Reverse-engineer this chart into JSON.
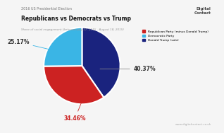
{
  "title_top": "2016 US Presidential Election",
  "title_main": "Republicans vs Democrats vs Trump",
  "title_sub": "Share of social engagement (between July 17, 2015 - Aug",
  "title_sub_full": "Share of social engagement (between July 17, 2015 - August 18, 2015)",
  "slices": [
    40.37,
    34.46,
    25.17
  ],
  "colors": [
    "#1a237e",
    "#cc2222",
    "#3ab5e5"
  ],
  "legend_labels": [
    "Republican Party (minus Donald Trump)",
    "Democratic Party",
    "Donald Trump (solo)"
  ],
  "legend_colors": [
    "#cc2222",
    "#3ab5e5",
    "#1a237e"
  ],
  "startangle": 90,
  "background_color": "#f5f5f5",
  "website": "www.digitalcontact.co.uk",
  "label_40": "40.37%",
  "label_34": "34.46%",
  "label_25": "25.17%"
}
